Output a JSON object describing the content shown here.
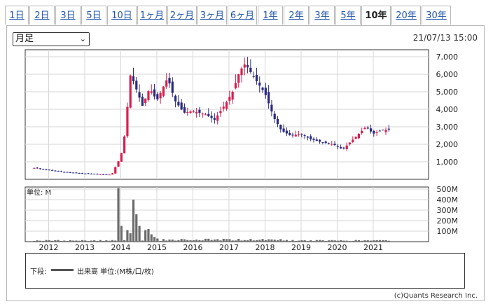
{
  "tabs": [
    {
      "label": "1日",
      "active": false
    },
    {
      "label": "2日",
      "active": false
    },
    {
      "label": "3日",
      "active": false
    },
    {
      "label": "5日",
      "active": false
    },
    {
      "label": "10日",
      "active": false
    },
    {
      "label": "1ヶ月",
      "active": false
    },
    {
      "label": "2ヶ月",
      "active": false
    },
    {
      "label": "3ヶ月",
      "active": false
    },
    {
      "label": "6ヶ月",
      "active": false
    },
    {
      "label": "1年",
      "active": false
    },
    {
      "label": "2年",
      "active": false
    },
    {
      "label": "3年",
      "active": false
    },
    {
      "label": "5年",
      "active": false
    },
    {
      "label": "10年",
      "active": true
    },
    {
      "label": "20年",
      "active": false
    },
    {
      "label": "30年",
      "active": false
    }
  ],
  "period_select": {
    "value": "月足"
  },
  "timestamp": "21/07/13 15:00",
  "colors": {
    "up": "#d6204f",
    "down": "#2a2a80",
    "volume": "#6b6b6b",
    "grid": "#d6d6d6"
  },
  "chart_data": [
    {
      "type": "candlestick",
      "ylim": [
        0,
        7400
      ],
      "y_ticks": [
        1000,
        2000,
        3000,
        4000,
        5000,
        6000,
        7000
      ],
      "y_tick_labels": [
        "1,000",
        "2,000",
        "3,000",
        "4,000",
        "5,000",
        "6,000",
        "7,000"
      ],
      "x_ticks": [
        "2012",
        "2013",
        "2014",
        "2015",
        "2016",
        "2017",
        "2018",
        "2019",
        "2020",
        "2021"
      ],
      "grid": true,
      "anchors": [
        [
          2011.6,
          650
        ],
        [
          2012.0,
          520
        ],
        [
          2012.5,
          400
        ],
        [
          2013.0,
          330
        ],
        [
          2013.5,
          280
        ],
        [
          2013.75,
          270
        ],
        [
          2013.85,
          700
        ],
        [
          2013.95,
          1100
        ],
        [
          2014.05,
          1700
        ],
        [
          2014.15,
          3200
        ],
        [
          2014.25,
          6000
        ],
        [
          2014.35,
          5600
        ],
        [
          2014.6,
          4200
        ],
        [
          2014.8,
          5200
        ],
        [
          2015.0,
          4500
        ],
        [
          2015.3,
          5800
        ],
        [
          2015.5,
          4500
        ],
        [
          2015.75,
          3800
        ],
        [
          2016.0,
          3900
        ],
        [
          2016.35,
          3700
        ],
        [
          2016.6,
          3400
        ],
        [
          2016.9,
          4300
        ],
        [
          2017.1,
          5000
        ],
        [
          2017.3,
          6200
        ],
        [
          2017.45,
          6600
        ],
        [
          2017.7,
          5800
        ],
        [
          2018.0,
          4900
        ],
        [
          2018.25,
          3500
        ],
        [
          2018.45,
          2800
        ],
        [
          2018.7,
          2500
        ],
        [
          2019.0,
          2600
        ],
        [
          2019.25,
          2300
        ],
        [
          2019.6,
          2100
        ],
        [
          2019.9,
          2000
        ],
        [
          2020.15,
          1700
        ],
        [
          2020.35,
          2100
        ],
        [
          2020.6,
          2600
        ],
        [
          2020.8,
          3000
        ],
        [
          2021.0,
          2600
        ],
        [
          2021.25,
          2800
        ],
        [
          2021.5,
          2850
        ]
      ]
    },
    {
      "type": "bar",
      "ylabel": "単位: M",
      "ylim": [
        0,
        520
      ],
      "y_ticks": [
        100,
        200,
        300,
        400,
        500
      ],
      "y_tick_labels": [
        "100M",
        "200M",
        "300M",
        "400M",
        "500M"
      ],
      "x_ticks": [
        "2012",
        "2013",
        "2014",
        "2015",
        "2016",
        "2017",
        "2018",
        "2019",
        "2020",
        "2021"
      ],
      "spikes": [
        [
          2013.9,
          40
        ],
        [
          2013.95,
          510
        ],
        [
          2014.05,
          150
        ],
        [
          2014.15,
          110
        ],
        [
          2014.25,
          80
        ],
        [
          2014.35,
          400
        ],
        [
          2014.45,
          260
        ],
        [
          2014.55,
          150
        ],
        [
          2014.65,
          110
        ],
        [
          2014.75,
          120
        ],
        [
          2014.85,
          70
        ],
        [
          2014.95,
          45
        ],
        [
          2015.05,
          30
        ],
        [
          2015.15,
          25
        ]
      ]
    }
  ],
  "legend": {
    "lower_label": "下段:",
    "series_label": "出来高 単位:(M株/口/枚)"
  },
  "copyright": "(c)Quants Research Inc."
}
